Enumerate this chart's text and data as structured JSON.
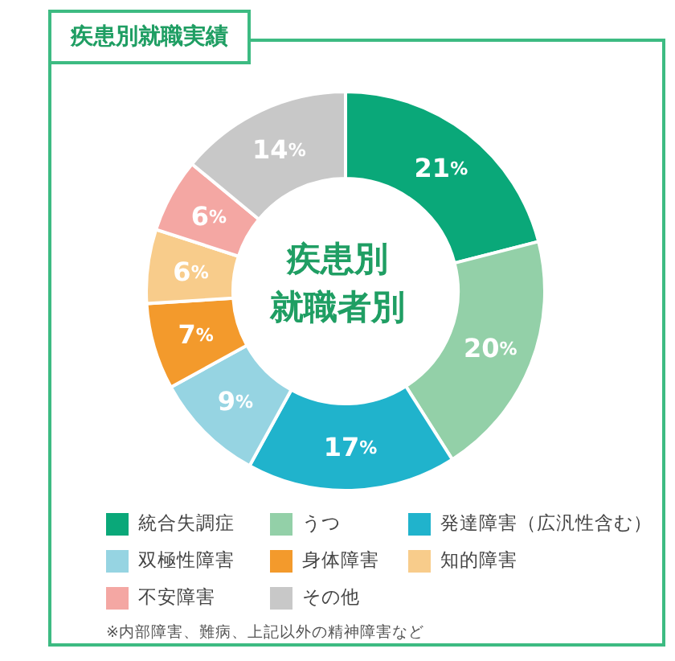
{
  "chart_data": {
    "type": "donut",
    "title": "疾患別就職実績",
    "subtitle": "疾患別就職者別",
    "categories": [
      "統合失調症",
      "うつ",
      "発達障害（広汎性含む）",
      "双極性障害",
      "身体障害",
      "知的障害",
      "不安障害",
      "その他"
    ],
    "values": [
      21,
      20,
      17,
      9,
      7,
      6,
      6,
      14
    ],
    "colors": [
      "#0aa879",
      "#93d0a8",
      "#20b3cc",
      "#96d4e2",
      "#f39a2c",
      "#f8cc8b",
      "#f4a7a3",
      "#c8c8c8"
    ],
    "value_labels": [
      "21%",
      "20%",
      "17%",
      "9%",
      "7%",
      "6%",
      "6%",
      "14%"
    ],
    "legend": "bottom",
    "annotations": [
      "※内部障害、難病、上記以外の精神障害など"
    ]
  }
}
